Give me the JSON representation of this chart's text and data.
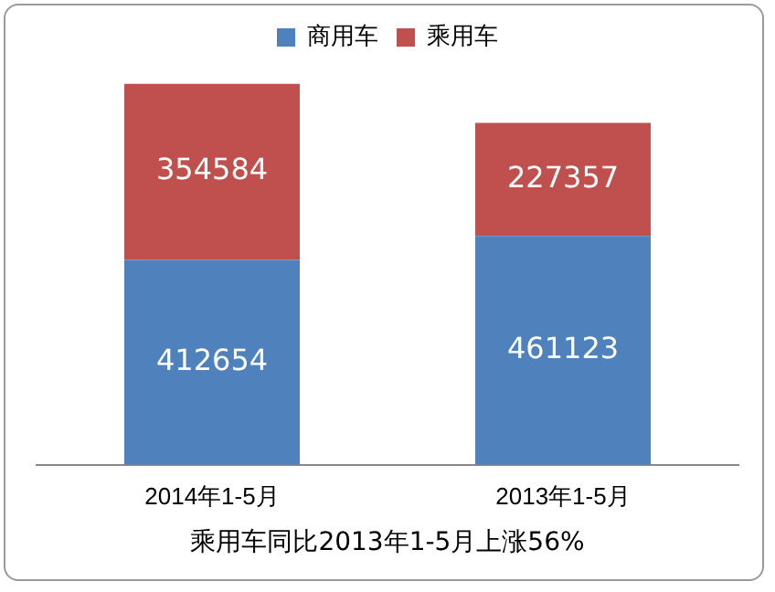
{
  "chart_data": {
    "type": "bar",
    "stacked": true,
    "categories": [
      "2014年1-5月",
      "2013年1-5月"
    ],
    "series": [
      {
        "name": "商用车",
        "color": "#4f81bd",
        "values": [
          412654,
          461123
        ]
      },
      {
        "name": "乘用车",
        "color": "#c0504d",
        "values": [
          354584,
          227357
        ]
      }
    ],
    "data_labels": true,
    "legend": "top",
    "grid": false,
    "tick_labels": "x",
    "annotations": [
      "乘用车同比2013年1-5月上涨56%"
    ]
  }
}
